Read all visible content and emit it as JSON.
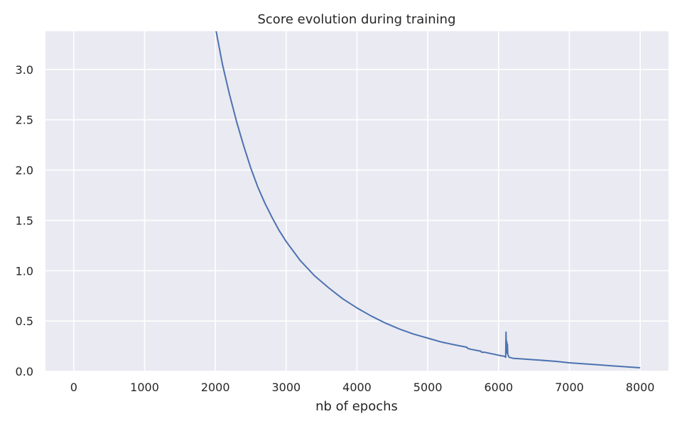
{
  "chart_data": {
    "type": "line",
    "title": "Score evolution during training",
    "xlabel": "nb of epochs",
    "ylabel": "",
    "xlim": [
      -400,
      8400
    ],
    "ylim": [
      0,
      3.38
    ],
    "grid": true,
    "x_ticks": [
      0,
      1000,
      2000,
      3000,
      4000,
      5000,
      6000,
      7000,
      8000
    ],
    "x_tick_labels": [
      "0",
      "1000",
      "2000",
      "3000",
      "4000",
      "5000",
      "6000",
      "7000",
      "8000"
    ],
    "y_ticks": [
      0.0,
      0.5,
      1.0,
      1.5,
      2.0,
      2.5,
      3.0
    ],
    "y_tick_labels": [
      "0.0",
      "0.5",
      "1.0",
      "1.5",
      "2.0",
      "2.5",
      "3.0"
    ],
    "colors": {
      "line": "#4c72b0",
      "background": "#eaeaf2",
      "grid": "#ffffff"
    },
    "series": [
      {
        "name": "",
        "x": [
          2000,
          2100,
          2200,
          2300,
          2400,
          2500,
          2600,
          2700,
          2800,
          2900,
          3000,
          3200,
          3400,
          3600,
          3800,
          4000,
          4200,
          4400,
          4600,
          4800,
          5000,
          5200,
          5400,
          5550,
          5560,
          5600,
          5750,
          5760,
          5800,
          6000,
          6080,
          6100,
          6105,
          6110,
          6115,
          6120,
          6125,
          6130,
          6140,
          6150,
          6200,
          6400,
          6600,
          6800,
          7000,
          7200,
          7400,
          7600,
          7800,
          8000
        ],
        "values": [
          3.42,
          3.05,
          2.75,
          2.48,
          2.24,
          2.02,
          1.83,
          1.67,
          1.53,
          1.4,
          1.29,
          1.1,
          0.95,
          0.83,
          0.72,
          0.63,
          0.55,
          0.48,
          0.42,
          0.37,
          0.33,
          0.29,
          0.26,
          0.24,
          0.23,
          0.22,
          0.2,
          0.19,
          0.19,
          0.16,
          0.15,
          0.14,
          0.39,
          0.18,
          0.3,
          0.22,
          0.27,
          0.17,
          0.15,
          0.14,
          0.13,
          0.12,
          0.11,
          0.1,
          0.085,
          0.075,
          0.065,
          0.055,
          0.045,
          0.035
        ]
      }
    ]
  }
}
